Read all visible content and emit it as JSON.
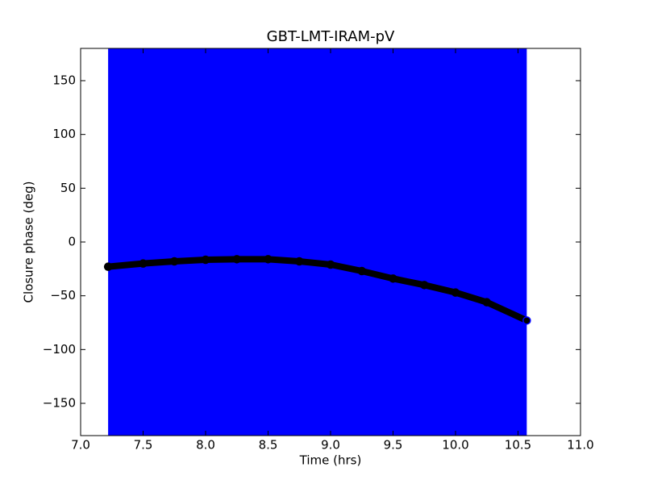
{
  "chart_data": {
    "type": "line",
    "title": "GBT-LMT-IRAM-pV",
    "xlabel": "Time (hrs)",
    "ylabel": "Closure phase (deg)",
    "x": [
      7.22,
      7.5,
      7.75,
      8.0,
      8.25,
      8.5,
      8.75,
      9.0,
      9.25,
      9.5,
      9.75,
      10.0,
      10.25,
      10.57
    ],
    "series": [
      {
        "name": "closure phase",
        "color": "#000000",
        "values": [
          -23,
          -20,
          -18,
          -16.5,
          -16,
          -16,
          -18,
          -21,
          -27,
          -34,
          -40,
          -47,
          -56,
          -73
        ]
      }
    ],
    "band_color": "#0000ff",
    "xlim": [
      7.0,
      11.0
    ],
    "xticks": [
      {
        "value": 7,
        "label": "7.0"
      },
      {
        "value": 7.5,
        "label": "7.5"
      },
      {
        "value": 8,
        "label": "8.0"
      },
      {
        "value": 8.5,
        "label": "8.5"
      },
      {
        "value": 9,
        "label": "9.0"
      },
      {
        "value": 9.5,
        "label": "9.5"
      },
      {
        "value": 10,
        "label": "10.0"
      },
      {
        "value": 10.5,
        "label": "10.5"
      },
      {
        "value": 11,
        "label": "11.0"
      }
    ],
    "ylim": [
      -180,
      180
    ],
    "yticks": [
      {
        "value": -150,
        "label": "−150"
      },
      {
        "value": -100,
        "label": "−100"
      },
      {
        "value": -50,
        "label": "−50"
      },
      0,
      50,
      100,
      150
    ],
    "grid": false
  }
}
